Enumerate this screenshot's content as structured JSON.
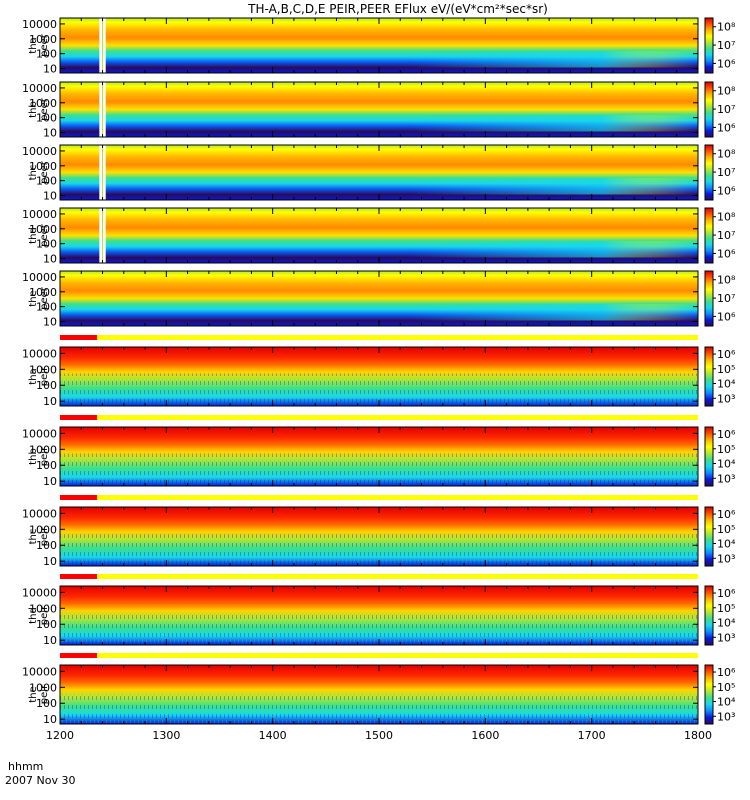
{
  "chart_data": {
    "type": "heatmap",
    "title": "TH-A,B,C,D,E PEIR,PEER EFlux eV/(eV*cm²*sec*sr)",
    "x_axis": {
      "range": [
        1200,
        1800
      ],
      "ticks": [
        "1200",
        "1300",
        "1400",
        "1500",
        "1600",
        "1700",
        "1800"
      ],
      "footer_labels": [
        "hhmm",
        "2007 Nov 30"
      ]
    },
    "y_range": [
      5,
      25000
    ],
    "y_scale": "log",
    "y_ticks": [
      "10000",
      "1000",
      "100",
      "10"
    ],
    "panels": [
      {
        "probe": "a",
        "species": "peer",
        "cbar_ticks": [
          "10⁸",
          "10⁷",
          "10⁶"
        ],
        "cbar_range": [
          300000,
          300000000
        ],
        "data_gap": [
          1237,
          1243
        ],
        "flag_bar": false
      },
      {
        "probe": "b",
        "species": "peer",
        "cbar_ticks": [
          "10⁸",
          "10⁷",
          "10⁶"
        ],
        "cbar_range": [
          300000,
          300000000
        ],
        "data_gap": [
          1237,
          1243
        ],
        "flag_bar": false
      },
      {
        "probe": "c",
        "species": "peer",
        "cbar_ticks": [
          "10⁸",
          "10⁷",
          "10⁶"
        ],
        "cbar_range": [
          300000,
          300000000
        ],
        "data_gap": [
          1237,
          1243
        ],
        "flag_bar": false
      },
      {
        "probe": "d",
        "species": "peer",
        "cbar_ticks": [
          "10⁸",
          "10⁷",
          "10⁶"
        ],
        "cbar_range": [
          300000,
          300000000
        ],
        "data_gap": [
          1237,
          1243
        ],
        "flag_bar": false
      },
      {
        "probe": "e",
        "species": "peer",
        "cbar_ticks": [
          "10⁸",
          "10⁷",
          "10⁶"
        ],
        "cbar_range": [
          300000,
          300000000
        ],
        "data_gap": null,
        "flag_bar": false
      },
      {
        "probe": "a",
        "species": "peir",
        "cbar_ticks": [
          "10⁶",
          "10⁵",
          "10⁴",
          "10³"
        ],
        "cbar_range": [
          300,
          3000000
        ],
        "data_gap": null,
        "flag_bar": true
      },
      {
        "probe": "b",
        "species": "peir",
        "cbar_ticks": [
          "10⁶",
          "10⁵",
          "10⁴",
          "10³"
        ],
        "cbar_range": [
          300,
          3000000
        ],
        "data_gap": null,
        "flag_bar": true
      },
      {
        "probe": "c",
        "species": "peir",
        "cbar_ticks": [
          "10⁶",
          "10⁵",
          "10⁴",
          "10³"
        ],
        "cbar_range": [
          300,
          3000000
        ],
        "data_gap": null,
        "flag_bar": true
      },
      {
        "probe": "d",
        "species": "peir",
        "cbar_ticks": [
          "10⁶",
          "10⁵",
          "10⁴",
          "10³"
        ],
        "cbar_range": [
          300,
          3000000
        ],
        "data_gap": null,
        "flag_bar": true
      },
      {
        "probe": "e",
        "species": "peir",
        "cbar_ticks": [
          "10⁶",
          "10⁵",
          "10⁴",
          "10³"
        ],
        "cbar_range": [
          300,
          3000000
        ],
        "data_gap": null,
        "flag_bar": true
      }
    ],
    "flag_bar": {
      "red_range": [
        1200,
        1235
      ],
      "yellow_range": [
        1235,
        1800
      ],
      "colors": {
        "red": "#ff0000",
        "yellow": "#ffff00"
      }
    },
    "colormap": [
      "#2a0a5e",
      "#0a1ad8",
      "#0a8cff",
      "#18d7ec",
      "#3ce08a",
      "#b4e632",
      "#ffff00",
      "#ffb400",
      "#ff5000",
      "#e00000"
    ]
  }
}
